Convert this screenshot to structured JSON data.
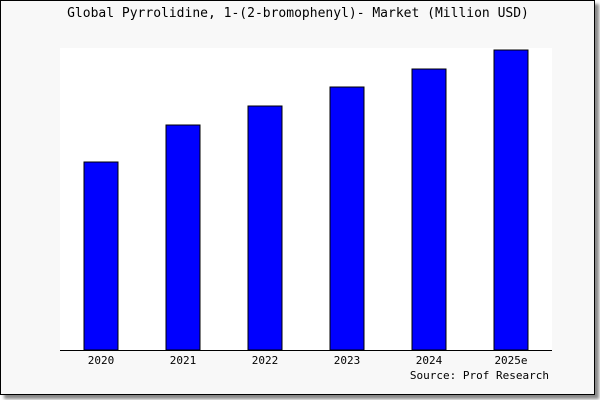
{
  "chart_data": {
    "type": "bar",
    "title": "Global Pyrrolidine, 1-(2-bromophenyl)- Market (Million USD)",
    "categories": [
      "2020",
      "2021",
      "2022",
      "2023",
      "2024",
      "2025e"
    ],
    "values": [
      188,
      225,
      244,
      263,
      281,
      300
    ],
    "ylim": [
      0,
      300
    ],
    "xlabel": "",
    "ylabel": "",
    "grid": false,
    "bar_color": "#0000ff",
    "source": "Source: Prof Research"
  }
}
